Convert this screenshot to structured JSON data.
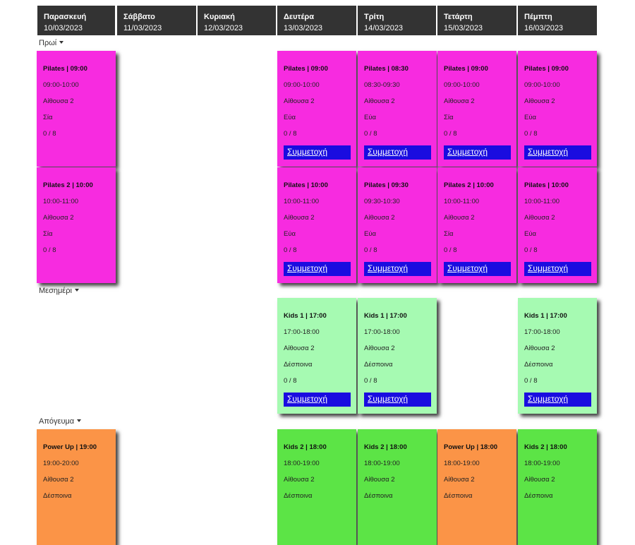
{
  "days": [
    {
      "name": "Παρασκευή",
      "date": "10/03/2023"
    },
    {
      "name": "Σάββατο",
      "date": "11/03/2023"
    },
    {
      "name": "Κυριακή",
      "date": "12/03/2023"
    },
    {
      "name": "Δευτέρα",
      "date": "13/03/2023"
    },
    {
      "name": "Τρίτη",
      "date": "14/03/2023"
    },
    {
      "name": "Τετάρτη",
      "date": "15/03/2023"
    },
    {
      "name": "Πέμπτη",
      "date": "16/03/2023"
    }
  ],
  "sections": {
    "morning": "Πρωί",
    "noon": "Μεσημέρι",
    "afternoon": "Απόγευμα"
  },
  "colors": {
    "header_bg": "#333333",
    "pilates": "#f72be0",
    "kids1": "#a6fab2",
    "kids2": "#5ce446",
    "power_up": "#fb9447",
    "join_button": "#1a0ce0"
  },
  "join_label": "Συμμετοχή",
  "classes": [
    {
      "title": "Pilates | 09:00",
      "time": "09:00-10:00",
      "room": "Αίθουσα 2",
      "instructor": "Σία",
      "capacity": "0 / 8"
    },
    {
      "title": "Pilates | 09:00",
      "time": "09:00-10:00",
      "room": "Αίθουσα 2",
      "instructor": "Εύα",
      "capacity": "0 / 8"
    },
    {
      "title": "Pilates | 08:30",
      "time": "08:30-09:30",
      "room": "Αίθουσα 2",
      "instructor": "Εύα",
      "capacity": "0 / 8"
    },
    {
      "title": "Pilates | 09:00",
      "time": "09:00-10:00",
      "room": "Αίθουσα 2",
      "instructor": "Σία",
      "capacity": "0 / 8"
    },
    {
      "title": "Pilates | 09:00",
      "time": "09:00-10:00",
      "room": "Αίθουσα 2",
      "instructor": "Εύα",
      "capacity": "0 / 8"
    },
    {
      "title": "Pilates 2 | 10:00",
      "time": "10:00-11:00",
      "room": "Αίθουσα 2",
      "instructor": "Σία",
      "capacity": "0 / 8"
    },
    {
      "title": "Pilates | 10:00",
      "time": "10:00-11:00",
      "room": "Αίθουσα 2",
      "instructor": "Εύα",
      "capacity": "0 / 8"
    },
    {
      "title": "Pilates | 09:30",
      "time": "09:30-10:30",
      "room": "Αίθουσα 2",
      "instructor": "Εύα",
      "capacity": "0 / 8"
    },
    {
      "title": "Pilates 2 | 10:00",
      "time": "10:00-11:00",
      "room": "Αίθουσα 2",
      "instructor": "Σία",
      "capacity": "0 / 8"
    },
    {
      "title": "Pilates | 10:00",
      "time": "10:00-11:00",
      "room": "Αίθουσα 2",
      "instructor": "Εύα",
      "capacity": "0 / 8"
    },
    {
      "title": "Kids 1 | 17:00",
      "time": "17:00-18:00",
      "room": "Αίθουσα 2",
      "instructor": "Δέσποινα",
      "capacity": "0 / 8"
    },
    {
      "title": "Kids 1 | 17:00",
      "time": "17:00-18:00",
      "room": "Αίθουσα 2",
      "instructor": "Δέσποινα",
      "capacity": "0 / 8"
    },
    {
      "title": "Kids 1 | 17:00",
      "time": "17:00-18:00",
      "room": "Αίθουσα 2",
      "instructor": "Δέσποινα",
      "capacity": "0 / 8"
    },
    {
      "title": "Power Up | 19:00",
      "time": "19:00-20:00",
      "room": "Αίθουσα 2",
      "instructor": "Δέσποινα"
    },
    {
      "title": "Kids 2 | 18:00",
      "time": "18:00-19:00",
      "room": "Αίθουσα 2",
      "instructor": "Δέσποινα"
    },
    {
      "title": "Kids 2 | 18:00",
      "time": "18:00-19:00",
      "room": "Αίθουσα 2",
      "instructor": "Δέσποινα"
    },
    {
      "title": "Power Up | 18:00",
      "time": "18:00-19:00",
      "room": "Αίθουσα 2",
      "instructor": "Δέσποινα"
    },
    {
      "title": "Kids 2 | 18:00",
      "time": "18:00-19:00",
      "room": "Αίθουσα 2",
      "instructor": "Δέσποινα"
    }
  ]
}
